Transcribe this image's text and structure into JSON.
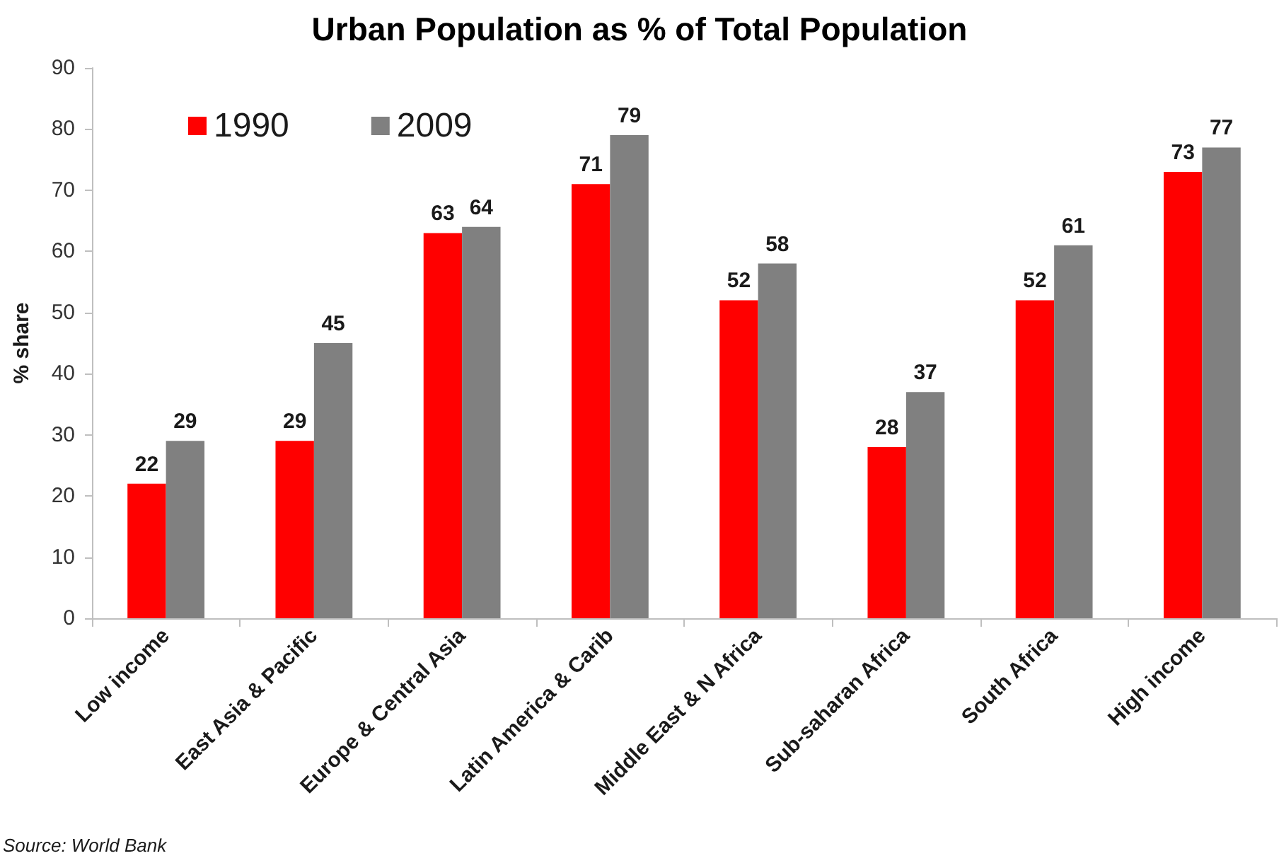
{
  "chart_data": {
    "type": "bar",
    "title": "Urban Population as % of Total Population",
    "ylabel": "% share",
    "categories": [
      "Low income",
      "East Asia & Pacific",
      "Europe & Central Asia",
      "Latin America & Carib",
      "Middle East & N Africa",
      "Sub-saharan Africa",
      "South Africa",
      "High income"
    ],
    "series": [
      {
        "name": "1990",
        "color": "#ff0000",
        "values": [
          22,
          29,
          63,
          71,
          52,
          28,
          52,
          73
        ]
      },
      {
        "name": "2009",
        "color": "#808080",
        "values": [
          29,
          45,
          64,
          79,
          58,
          37,
          61,
          77
        ]
      }
    ],
    "ylim": [
      0,
      90
    ],
    "yticks": [
      0,
      10,
      20,
      30,
      40,
      50,
      60,
      70,
      80,
      90
    ],
    "data_labels": true,
    "grid": false,
    "legend": "top left",
    "annotations": [
      "Source: World Bank"
    ]
  }
}
